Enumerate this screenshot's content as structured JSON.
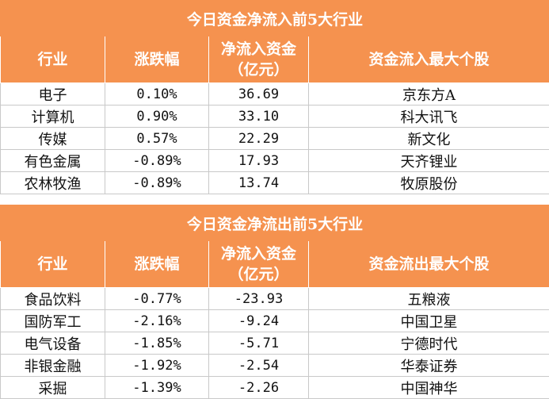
{
  "inflow": {
    "title": "今日资金净流入前5大行业",
    "headers": [
      "行业",
      "涨跌幅",
      "净流入资金\n（亿元）",
      "资金流入最大个股"
    ],
    "rows": [
      [
        "电子",
        "0.10%",
        "36.69",
        "京东方A"
      ],
      [
        "计算机",
        "0.90%",
        "33.10",
        "科大讯飞"
      ],
      [
        "传媒",
        "0.57%",
        "22.29",
        "新文化"
      ],
      [
        "有色金属",
        "-0.89%",
        "17.93",
        "天齐锂业"
      ],
      [
        "农林牧渔",
        "-0.89%",
        "13.74",
        "牧原股份"
      ]
    ]
  },
  "outflow": {
    "title": "今日资金净流出前5大行业",
    "headers": [
      "行业",
      "涨跌幅",
      "净流入资金\n（亿元）",
      "资金流出最大个股"
    ],
    "rows": [
      [
        "食品饮料",
        "-0.77%",
        "-23.93",
        "五粮液"
      ],
      [
        "国防军工",
        "-2.16%",
        "-9.24",
        "中国卫星"
      ],
      [
        "电气设备",
        "-1.85%",
        "-5.71",
        "宁德时代"
      ],
      [
        "非银金融",
        "-1.92%",
        "-2.54",
        "华泰证券"
      ],
      [
        "采掘",
        "-1.39%",
        "-2.26",
        "中国神华"
      ]
    ]
  }
}
